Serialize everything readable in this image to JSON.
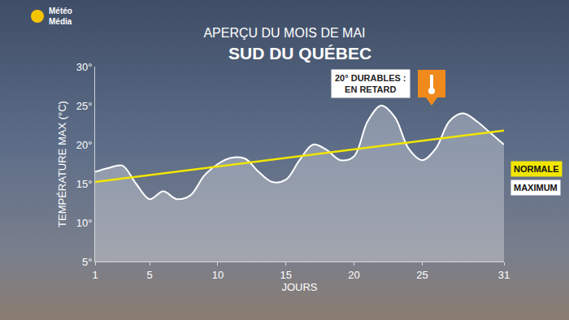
{
  "chart_data": {
    "type": "line",
    "logo": "Météo Média",
    "title": "APERÇU DU MOIS DE MAI",
    "subtitle": "SUD DU QUÉBEC",
    "x_label": "JOURS",
    "y_label": "TEMPÉRATURE MAX (°C)",
    "annotation": [
      "20° DURABLES :",
      "EN RETARD"
    ],
    "x": [
      1,
      2,
      3,
      4,
      5,
      6,
      7,
      8,
      9,
      10,
      11,
      12,
      13,
      14,
      15,
      16,
      17,
      18,
      19,
      20,
      21,
      22,
      23,
      24,
      25,
      26,
      27,
      28,
      29,
      30,
      31
    ],
    "series": [
      {
        "name": "NORMALE",
        "color": "#f2e600",
        "x": [
          1,
          31
        ],
        "values": [
          15.2,
          21.8
        ]
      },
      {
        "name": "MAXIMUM",
        "color": "#ffffff",
        "values": [
          16.5,
          17,
          17.3,
          15,
          13,
          14,
          13,
          13.5,
          16,
          17.5,
          18.3,
          18.2,
          16.5,
          15.2,
          15.5,
          18,
          20,
          19.3,
          18,
          18.5,
          23,
          25,
          23.5,
          19.5,
          18,
          19.5,
          23,
          24,
          23,
          21.5,
          20
        ]
      }
    ],
    "xlim": [
      1,
      31
    ],
    "xticks": [
      1,
      5,
      10,
      15,
      20,
      25,
      31
    ],
    "ylim": [
      5,
      30
    ],
    "yticks": [
      {
        "value": 5,
        "label": "5°"
      },
      {
        "value": 10,
        "label": "10°"
      },
      {
        "value": 15,
        "label": "15°"
      },
      {
        "value": 20,
        "label": "20°"
      },
      {
        "value": 25,
        "label": "25°"
      },
      {
        "value": 30,
        "label": "30°"
      }
    ],
    "grid": false
  }
}
